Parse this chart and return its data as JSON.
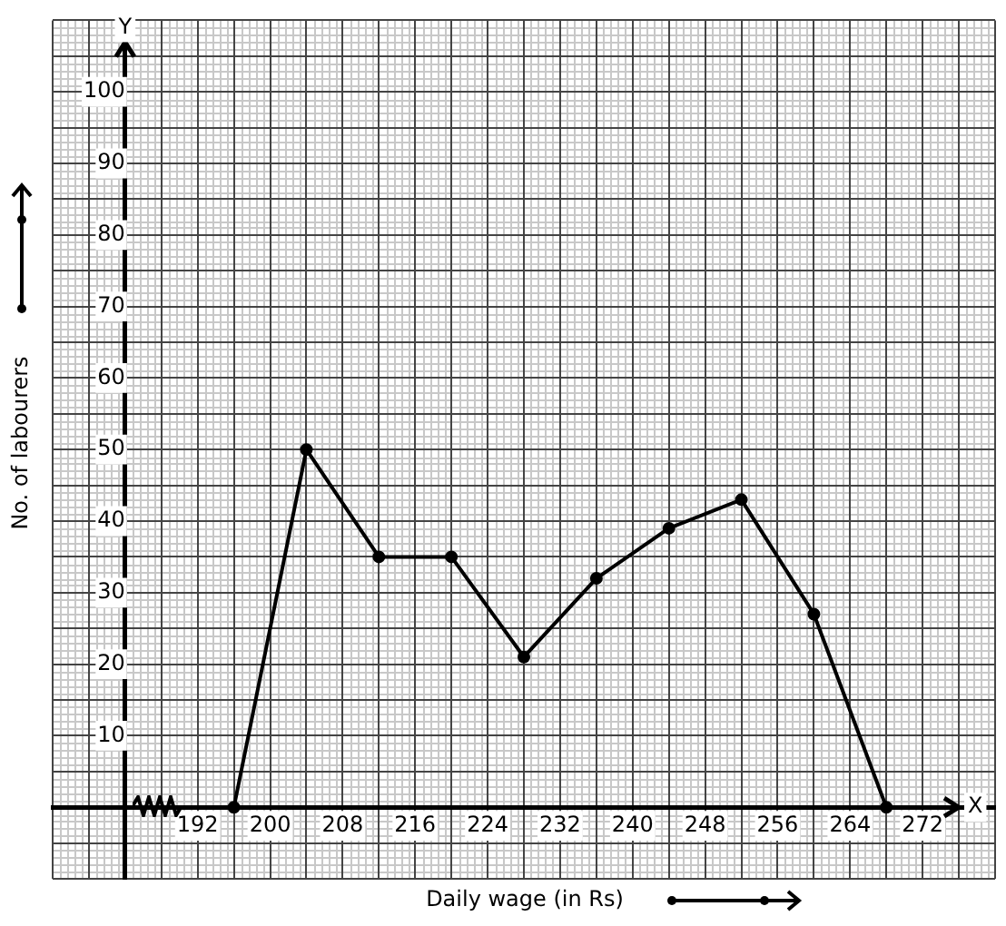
{
  "chart_data": {
    "type": "line",
    "xlabel": "Daily wage (in Rs)",
    "ylabel": "No. of labourers",
    "annotations": [
      "Y",
      "X"
    ],
    "x": [
      196,
      204,
      212,
      220,
      228,
      236,
      244,
      252,
      260,
      268
    ],
    "series": [
      {
        "color": "#000000",
        "values": [
          0,
          50,
          35,
          35,
          21,
          32,
          39,
          43,
          27,
          0
        ]
      }
    ],
    "xlim": [
      176,
      280
    ],
    "xticks": [
      {
        "value": 176,
        "label": null
      },
      {
        "value": 180,
        "label": null
      },
      {
        "value": 184,
        "label": null
      },
      {
        "value": 188,
        "label": null
      },
      192,
      {
        "value": 196,
        "label": null
      },
      200,
      {
        "value": 204,
        "label": null
      },
      208,
      {
        "value": 212,
        "label": null
      },
      216,
      {
        "value": 220,
        "label": null
      },
      224,
      {
        "value": 228,
        "label": null
      },
      232,
      {
        "value": 236,
        "label": null
      },
      240,
      {
        "value": 244,
        "label": null
      },
      248,
      {
        "value": 252,
        "label": null
      },
      256,
      {
        "value": 260,
        "label": null
      },
      264,
      {
        "value": 268,
        "label": null
      },
      272,
      {
        "value": 276,
        "label": null
      },
      {
        "value": 280,
        "label": null
      }
    ],
    "ylim": [
      -10,
      110
    ],
    "yticks": [
      {
        "value": -10,
        "label": null
      },
      {
        "value": -5,
        "label": null
      },
      {
        "value": 0,
        "label": null
      },
      {
        "value": 5,
        "label": null
      },
      10,
      {
        "value": 15,
        "label": null
      },
      20,
      {
        "value": 25,
        "label": null
      },
      30,
      {
        "value": 35,
        "label": null
      },
      40,
      {
        "value": 45,
        "label": null
      },
      50,
      {
        "value": 55,
        "label": null
      },
      60,
      {
        "value": 65,
        "label": null
      },
      70,
      {
        "value": 75,
        "label": null
      },
      80,
      {
        "value": 85,
        "label": null
      },
      90,
      {
        "value": 95,
        "label": null
      },
      100,
      {
        "value": 105,
        "label": null
      },
      {
        "value": 110,
        "label": null
      }
    ],
    "grid": true,
    "marker": "circle",
    "line_style": "solid",
    "legend": false
  }
}
